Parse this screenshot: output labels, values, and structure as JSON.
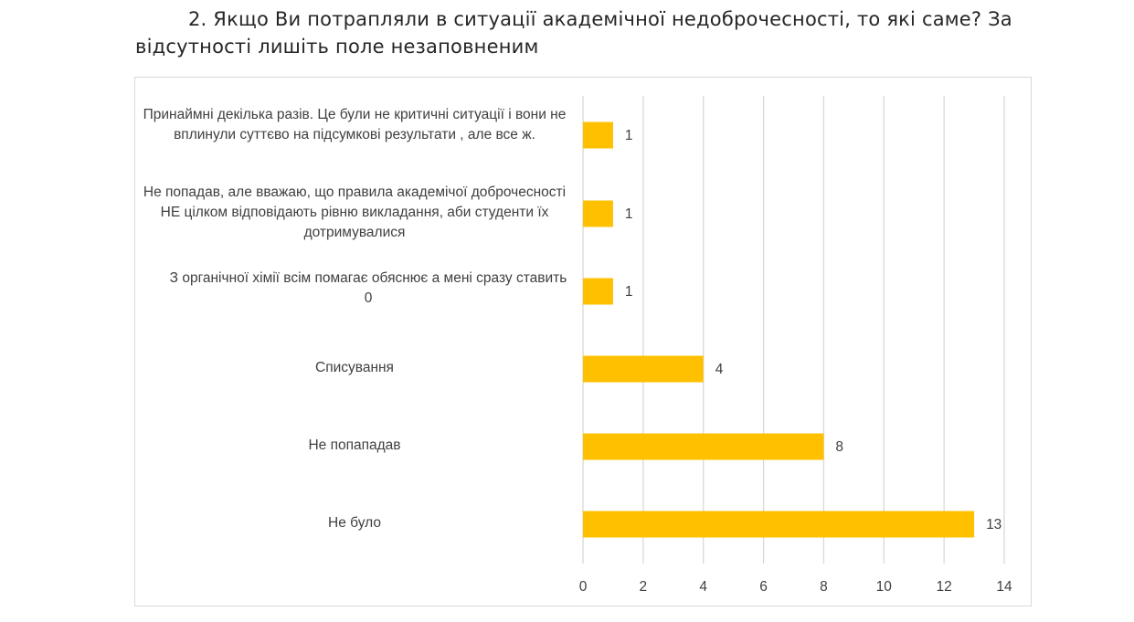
{
  "heading": "2. Якщо Ви потрапляли в ситуації академічної недоброчесності, то які саме? За відсутності лишіть поле незаповненим",
  "colors": {
    "bar": "#ffc000",
    "grid": "#d9d9d9",
    "text": "#404040"
  },
  "chart_data": {
    "type": "bar",
    "orientation": "horizontal",
    "categories": [
      "Принаймні декілька разів.  Це були не критичні ситуації і вони не вплинули суттєво на підсумкові результати , але все ж.",
      "Не попадав, але вважаю, що правила академічої доброчесності НЕ цілком відповідають рівню викладання, аби студенти їх дотримувалися",
      "З органічної хімії всім помагає обяснює а мені сразу ставить 0",
      "Списування",
      "Не попападав",
      "Не було"
    ],
    "values": [
      1,
      1,
      1,
      4,
      8,
      13
    ],
    "data_labels": [
      "1",
      "1",
      "1",
      "4",
      "8",
      "13"
    ],
    "xlim": [
      0,
      14
    ],
    "x_ticks": [
      "0",
      "2",
      "4",
      "6",
      "8",
      "10",
      "12",
      "14"
    ],
    "grid": true,
    "legend": "none"
  }
}
